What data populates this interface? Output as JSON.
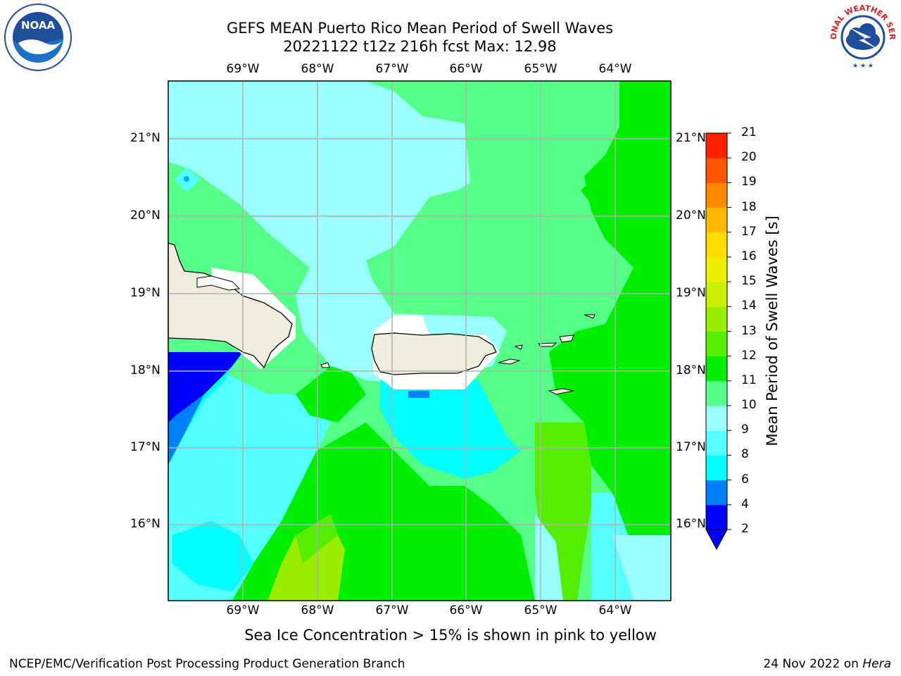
{
  "header": {
    "title_line1": "GEFS MEAN Puerto Rico Mean Period of Swell Waves",
    "title_line2": "20221122 t12z 216h fcst   Max: 12.98"
  },
  "map": {
    "longitude_labels": [
      "69°W",
      "68°W",
      "67°W",
      "66°W",
      "65°W",
      "64°W"
    ],
    "latitude_labels": [
      "21°N",
      "20°N",
      "19°N",
      "18°N",
      "17°N",
      "16°N"
    ],
    "longitude_range": [
      -70.0,
      -63.3
    ],
    "latitude_range": [
      15.0,
      21.75
    ],
    "land_color": "#eeecdc",
    "masked_color": "#ffffff",
    "gridlines": true,
    "regions": [
      "Puerto Rico",
      "Hispaniola (eastern)",
      "Virgin Islands"
    ]
  },
  "colorbar": {
    "label": "Mean Period of Swell Waves [s]",
    "tick_labels": [
      "2",
      "4",
      "6",
      "8",
      "9",
      "10",
      "11",
      "12",
      "13",
      "14",
      "15",
      "16",
      "17",
      "18",
      "19",
      "20",
      "21"
    ],
    "levels": [
      2,
      4,
      6,
      8,
      9,
      10,
      11,
      12,
      13,
      14,
      15,
      16,
      17,
      18,
      19,
      20,
      21
    ],
    "colors": [
      "#0000ff",
      "#0080ff",
      "#00ffff",
      "#55ffff",
      "#99ffff",
      "#55ff88",
      "#00ee00",
      "#55ee00",
      "#99ee00",
      "#ccee00",
      "#eeee00",
      "#ffdd00",
      "#ffbb00",
      "#ff8800",
      "#ff5500",
      "#ff2200",
      "#ff0000"
    ],
    "extend": "min"
  },
  "footer": {
    "note": "Sea Ice Concentration > 15% is shown in pink to yellow",
    "left": "NCEP/EMC/Verification Post Processing Product Generation Branch",
    "right_date": "24 Nov 2022 on ",
    "right_machine": "Hera"
  },
  "logos": {
    "left": "NOAA",
    "right": "NATIONAL WEATHER SERVICE"
  }
}
